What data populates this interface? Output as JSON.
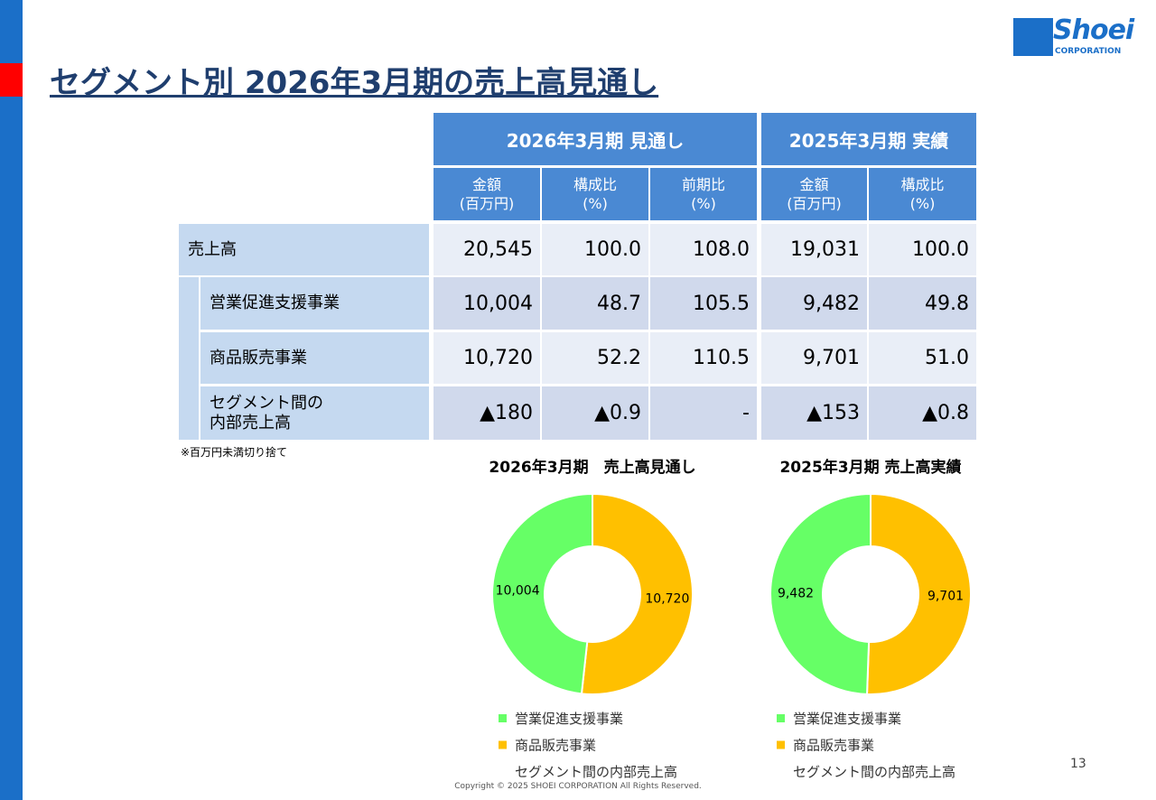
{
  "header": {
    "title": "セグメント別 2026年3月期の売上高見通し",
    "logo": {
      "name": "Shoei",
      "sub": "CORPORATION"
    }
  },
  "table": {
    "groups": [
      "2026年3月期 見通し",
      "2025年3月期 実績"
    ],
    "columns": [
      [
        "金額",
        "(百万円)"
      ],
      [
        "構成比",
        "(%)"
      ],
      [
        "前期比",
        "(%)"
      ],
      [
        "金額",
        "(百万円)"
      ],
      [
        "構成比",
        "(%)"
      ]
    ],
    "rows": [
      {
        "label": [
          "売上高"
        ],
        "cells": [
          "20,545",
          "100.0",
          "108.0",
          "19,031",
          "100.0"
        ]
      },
      {
        "label": [
          "営業促進支援事業"
        ],
        "cells": [
          "10,004",
          "48.7",
          "105.5",
          "9,482",
          "49.8"
        ]
      },
      {
        "label": [
          "商品販売事業"
        ],
        "cells": [
          "10,720",
          "52.2",
          "110.5",
          "9,701",
          "51.0"
        ]
      },
      {
        "label": [
          "セグメント間の",
          "内部売上高"
        ],
        "cells": [
          "▲180",
          "▲0.9",
          "-",
          "▲153",
          "▲0.8"
        ]
      }
    ]
  },
  "note": "※百万円未満切り捨て",
  "chart_data": [
    {
      "type": "pie",
      "title": "2026年3月期　売上高見通し",
      "categories": [
        "営業促進支援事業",
        "商品販売事業",
        "セグメント間の内部売上高"
      ],
      "values": [
        10004,
        10720,
        null
      ],
      "value_labels": [
        "10,004",
        "10,720",
        null
      ],
      "colors": [
        "#66ff66",
        "#ffc000",
        null
      ],
      "hole": true
    },
    {
      "type": "pie",
      "title": "2025年3月期 売上高実績",
      "categories": [
        "営業促進支援事業",
        "商品販売事業",
        "セグメント間の内部売上高"
      ],
      "values": [
        9482,
        9701,
        null
      ],
      "value_labels": [
        "9,482",
        "9,701",
        null
      ],
      "colors": [
        "#66ff66",
        "#ffc000",
        null
      ],
      "hole": true
    }
  ],
  "page_number": "13",
  "copyright": "Copyright © 2025 SHOEI CORPORATION All Rights Reserved."
}
